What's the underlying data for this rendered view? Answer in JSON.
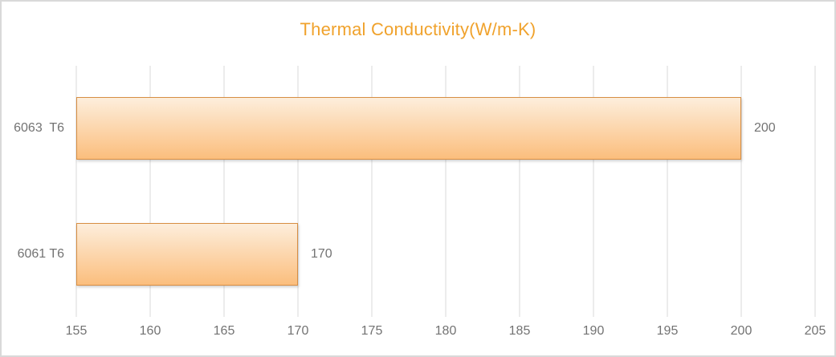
{
  "chart_data": {
    "type": "bar",
    "orientation": "horizontal",
    "title": "Thermal Conductivity(W/m-K)",
    "categories": [
      "6063  T6",
      "6061 T6"
    ],
    "values": [
      200,
      170
    ],
    "data_labels": [
      "200",
      "170"
    ],
    "xlabel": "",
    "ylabel": "",
    "xlim": [
      155,
      205
    ],
    "x_ticks": [
      155,
      160,
      165,
      170,
      175,
      180,
      185,
      190,
      195,
      200,
      205
    ],
    "grid": true,
    "gridlines": "vertical",
    "legend": false
  },
  "colors": {
    "title": "#f0a22c",
    "bar_fill_top": "#fdeedc",
    "bar_fill_bottom": "#fbbe7d",
    "bar_border": "#d78e43",
    "gridline": "#d9d9d9",
    "axis_text": "#737373",
    "frame_border": "#d9d9d9",
    "background": "#ffffff"
  }
}
